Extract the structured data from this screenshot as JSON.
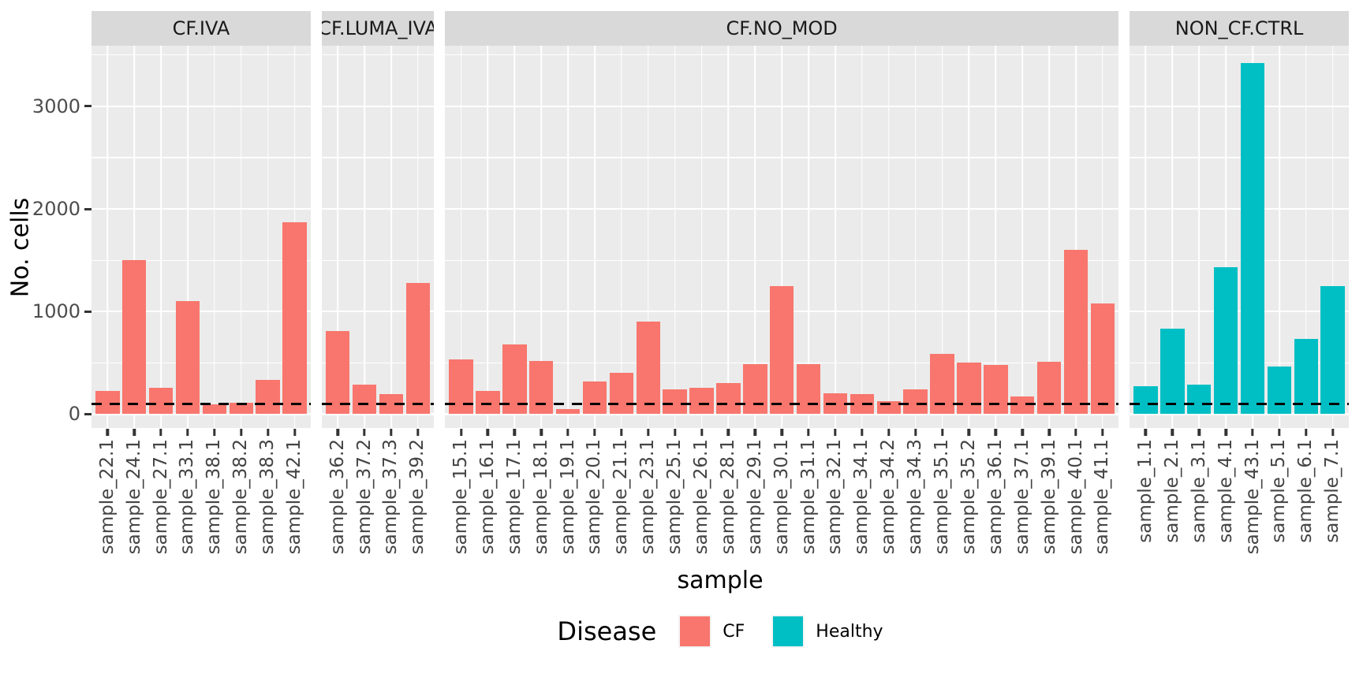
{
  "figure": {
    "y_axis_title": "No. cells",
    "x_axis_title": "sample"
  },
  "chart_data": {
    "type": "bar",
    "title": "",
    "xlabel": "sample",
    "ylabel": "No. cells",
    "ylim": [
      -135,
      3590
    ],
    "yticks": [
      0,
      1000,
      2000,
      3000
    ],
    "minor_gridlines": [
      500,
      1500,
      2500,
      3500
    ],
    "grid": "on",
    "panel_background": "#ebebeb",
    "strip_background": "#d9d9d9",
    "gridline_color": "#ffffff",
    "hline": {
      "y": 100,
      "style": "dashed",
      "color": "#000000"
    },
    "legend": {
      "title": "Disease",
      "position": "bottom",
      "items": [
        {
          "label": "CF",
          "color": "#F8766D"
        },
        {
          "label": "Healthy",
          "color": "#00BFC4"
        }
      ]
    },
    "facets": [
      {
        "label": "CF.IVA",
        "series_key": "CF",
        "color": "#F8766D",
        "samples": [
          "sample_22.1",
          "sample_24.1",
          "sample_27.1",
          "sample_33.1",
          "sample_38.1",
          "sample_38.2",
          "sample_38.3",
          "sample_42.1"
        ],
        "values": [
          225,
          1500,
          255,
          1100,
          95,
          110,
          330,
          1870
        ]
      },
      {
        "label": "CF.LUMA_IVA",
        "series_key": "CF",
        "color": "#F8766D",
        "samples": [
          "sample_36.2",
          "sample_37.2",
          "sample_37.3",
          "sample_39.2"
        ],
        "values": [
          810,
          290,
          195,
          1280
        ]
      },
      {
        "label": "CF.NO_MOD",
        "series_key": "CF",
        "color": "#F8766D",
        "samples": [
          "sample_15.1",
          "sample_16.1",
          "sample_17.1",
          "sample_18.1",
          "sample_19.1",
          "sample_20.1",
          "sample_21.1",
          "sample_23.1",
          "sample_25.1",
          "sample_26.1",
          "sample_28.1",
          "sample_29.1",
          "sample_30.1",
          "sample_31.1",
          "sample_32.1",
          "sample_34.1",
          "sample_34.2",
          "sample_34.3",
          "sample_35.1",
          "sample_35.2",
          "sample_36.1",
          "sample_37.1",
          "sample_39.1",
          "sample_40.1",
          "sample_41.1"
        ],
        "values": [
          535,
          225,
          680,
          520,
          50,
          320,
          400,
          900,
          240,
          260,
          300,
          490,
          1250,
          490,
          200,
          195,
          130,
          245,
          585,
          505,
          480,
          175,
          510,
          1600,
          1080
        ]
      },
      {
        "label": "NON_CF.CTRL",
        "series_key": "Healthy",
        "color": "#00BFC4",
        "samples": [
          "sample_1.1",
          "sample_2.1",
          "sample_3.1",
          "sample_4.1",
          "sample_43.1",
          "sample_5.1",
          "sample_6.1",
          "sample_7.1"
        ],
        "values": [
          270,
          830,
          290,
          1435,
          3420,
          465,
          730,
          1250
        ]
      }
    ]
  }
}
